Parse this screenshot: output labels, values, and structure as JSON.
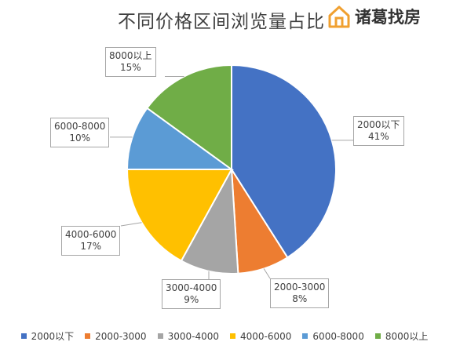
{
  "brand": {
    "name": "诸葛找房",
    "icon": "house-logo-icon",
    "color": "#f0a030"
  },
  "chart_data": {
    "type": "pie",
    "title": "不同价格区间浏览量占比",
    "categories": [
      "2000以下",
      "2000-3000",
      "3000-4000",
      "4000-6000",
      "6000-8000",
      "8000以上"
    ],
    "values": [
      41,
      8,
      9,
      17,
      10,
      15
    ],
    "value_labels": [
      "41%",
      "8%",
      "9%",
      "17%",
      "10%",
      "15%"
    ],
    "colors": [
      "#4472c4",
      "#ed7d31",
      "#a5a5a5",
      "#ffc000",
      "#5b9bd5",
      "#70ad47"
    ],
    "legend_position": "bottom",
    "start_angle": "12 o'clock",
    "direction": "clockwise"
  }
}
